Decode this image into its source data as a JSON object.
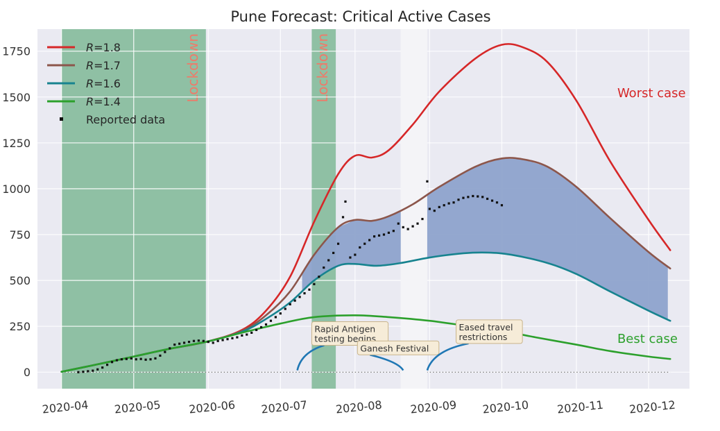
{
  "chart_data": {
    "type": "line",
    "title": "Pune Forecast: Critical Active Cases",
    "xlabel": "",
    "ylabel": "",
    "x_axis": {
      "type": "date",
      "ticks": [
        "2020-04",
        "2020-05",
        "2020-06",
        "2020-07",
        "2020-08",
        "2020-09",
        "2020-10",
        "2020-11",
        "2020-12"
      ],
      "range": [
        "2020-03-22",
        "2020-12-18"
      ]
    },
    "y_axis": {
      "ticks": [
        0,
        250,
        500,
        750,
        1000,
        1250,
        1500,
        1750
      ],
      "range": [
        -90,
        1870
      ]
    },
    "grid": true,
    "legend_position": "top-left",
    "colors": {
      "background": "#eaeaf2",
      "lockdown_band": "#8fc0a4",
      "reopen_band": "#f4f4f7",
      "shaded_region": "#8ea3cc",
      "annotation_box": "#f6ecd8",
      "annotation_arrow": "#1f77b4"
    },
    "series": [
      {
        "name": "R=1.8",
        "legend_prefix": "R",
        "legend_suffix": "=1.8",
        "color": "#d62728",
        "points": [
          [
            "2020-04-01",
            2
          ],
          [
            "2020-04-15",
            40
          ],
          [
            "2020-05-01",
            85
          ],
          [
            "2020-05-15",
            125
          ],
          [
            "2020-06-01",
            168
          ],
          [
            "2020-06-15",
            230
          ],
          [
            "2020-06-25",
            335
          ],
          [
            "2020-07-05",
            520
          ],
          [
            "2020-07-15",
            820
          ],
          [
            "2020-07-25",
            1080
          ],
          [
            "2020-08-01",
            1180
          ],
          [
            "2020-08-08",
            1170
          ],
          [
            "2020-08-15",
            1210
          ],
          [
            "2020-08-25",
            1350
          ],
          [
            "2020-09-05",
            1530
          ],
          [
            "2020-09-20",
            1710
          ],
          [
            "2020-10-01",
            1785
          ],
          [
            "2020-10-10",
            1770
          ],
          [
            "2020-10-20",
            1690
          ],
          [
            "2020-11-01",
            1480
          ],
          [
            "2020-11-15",
            1150
          ],
          [
            "2020-12-01",
            830
          ],
          [
            "2020-12-10",
            665
          ]
        ]
      },
      {
        "name": "R=1.7",
        "legend_prefix": "R",
        "legend_suffix": "=1.7",
        "color": "#8c564b",
        "points": [
          [
            "2020-04-01",
            2
          ],
          [
            "2020-04-15",
            40
          ],
          [
            "2020-05-01",
            85
          ],
          [
            "2020-05-15",
            125
          ],
          [
            "2020-06-01",
            168
          ],
          [
            "2020-06-15",
            225
          ],
          [
            "2020-06-25",
            310
          ],
          [
            "2020-07-05",
            440
          ],
          [
            "2020-07-15",
            640
          ],
          [
            "2020-07-25",
            790
          ],
          [
            "2020-08-01",
            830
          ],
          [
            "2020-08-08",
            825
          ],
          [
            "2020-08-15",
            850
          ],
          [
            "2020-08-25",
            915
          ],
          [
            "2020-09-05",
            1010
          ],
          [
            "2020-09-20",
            1120
          ],
          [
            "2020-10-01",
            1165
          ],
          [
            "2020-10-10",
            1160
          ],
          [
            "2020-10-20",
            1120
          ],
          [
            "2020-11-01",
            1010
          ],
          [
            "2020-11-15",
            840
          ],
          [
            "2020-12-01",
            655
          ],
          [
            "2020-12-10",
            565
          ]
        ]
      },
      {
        "name": "R=1.6",
        "legend_prefix": "R",
        "legend_suffix": "=1.6",
        "color": "#17838f",
        "points": [
          [
            "2020-04-01",
            2
          ],
          [
            "2020-04-15",
            40
          ],
          [
            "2020-05-01",
            85
          ],
          [
            "2020-05-15",
            125
          ],
          [
            "2020-06-01",
            168
          ],
          [
            "2020-06-15",
            220
          ],
          [
            "2020-06-25",
            290
          ],
          [
            "2020-07-05",
            380
          ],
          [
            "2020-07-15",
            500
          ],
          [
            "2020-07-25",
            580
          ],
          [
            "2020-08-01",
            590
          ],
          [
            "2020-08-10",
            580
          ],
          [
            "2020-08-20",
            595
          ],
          [
            "2020-09-01",
            625
          ],
          [
            "2020-09-15",
            648
          ],
          [
            "2020-09-25",
            652
          ],
          [
            "2020-10-05",
            640
          ],
          [
            "2020-10-20",
            595
          ],
          [
            "2020-11-01",
            535
          ],
          [
            "2020-11-15",
            440
          ],
          [
            "2020-12-01",
            335
          ],
          [
            "2020-12-10",
            280
          ]
        ]
      },
      {
        "name": "R=1.4",
        "legend_prefix": "R",
        "legend_suffix": "=1.4",
        "color": "#2ca02c",
        "points": [
          [
            "2020-04-01",
            2
          ],
          [
            "2020-04-15",
            40
          ],
          [
            "2020-05-01",
            85
          ],
          [
            "2020-05-15",
            125
          ],
          [
            "2020-06-01",
            168
          ],
          [
            "2020-06-15",
            215
          ],
          [
            "2020-07-01",
            265
          ],
          [
            "2020-07-15",
            300
          ],
          [
            "2020-08-01",
            310
          ],
          [
            "2020-08-15",
            300
          ],
          [
            "2020-09-01",
            280
          ],
          [
            "2020-09-15",
            255
          ],
          [
            "2020-10-01",
            225
          ],
          [
            "2020-10-15",
            190
          ],
          [
            "2020-11-01",
            150
          ],
          [
            "2020-11-15",
            115
          ],
          [
            "2020-12-01",
            85
          ],
          [
            "2020-12-10",
            72
          ]
        ]
      }
    ],
    "reported_data": {
      "name": "Reported data",
      "color": "#111111",
      "points": [
        [
          "2020-04-08",
          0
        ],
        [
          "2020-04-10",
          2
        ],
        [
          "2020-04-12",
          5
        ],
        [
          "2020-04-14",
          8
        ],
        [
          "2020-04-16",
          15
        ],
        [
          "2020-04-18",
          25
        ],
        [
          "2020-04-20",
          40
        ],
        [
          "2020-04-22",
          55
        ],
        [
          "2020-04-24",
          65
        ],
        [
          "2020-04-26",
          70
        ],
        [
          "2020-04-28",
          72
        ],
        [
          "2020-04-30",
          75
        ],
        [
          "2020-05-02",
          70
        ],
        [
          "2020-05-04",
          72
        ],
        [
          "2020-05-06",
          68
        ],
        [
          "2020-05-08",
          70
        ],
        [
          "2020-05-10",
          75
        ],
        [
          "2020-05-12",
          90
        ],
        [
          "2020-05-14",
          110
        ],
        [
          "2020-05-16",
          130
        ],
        [
          "2020-05-18",
          150
        ],
        [
          "2020-05-20",
          155
        ],
        [
          "2020-05-22",
          160
        ],
        [
          "2020-05-24",
          165
        ],
        [
          "2020-05-26",
          170
        ],
        [
          "2020-05-28",
          172
        ],
        [
          "2020-05-30",
          170
        ],
        [
          "2020-06-01",
          165
        ],
        [
          "2020-06-03",
          160
        ],
        [
          "2020-06-05",
          170
        ],
        [
          "2020-06-07",
          175
        ],
        [
          "2020-06-09",
          180
        ],
        [
          "2020-06-11",
          185
        ],
        [
          "2020-06-13",
          190
        ],
        [
          "2020-06-15",
          200
        ],
        [
          "2020-06-17",
          205
        ],
        [
          "2020-06-19",
          215
        ],
        [
          "2020-06-21",
          230
        ],
        [
          "2020-06-23",
          245
        ],
        [
          "2020-06-25",
          260
        ],
        [
          "2020-06-27",
          280
        ],
        [
          "2020-06-29",
          300
        ],
        [
          "2020-07-01",
          320
        ],
        [
          "2020-07-03",
          345
        ],
        [
          "2020-07-05",
          370
        ],
        [
          "2020-07-07",
          390
        ],
        [
          "2020-07-09",
          410
        ],
        [
          "2020-07-11",
          430
        ],
        [
          "2020-07-13",
          450
        ],
        [
          "2020-07-15",
          480
        ],
        [
          "2020-07-17",
          520
        ],
        [
          "2020-07-19",
          570
        ],
        [
          "2020-07-21",
          610
        ],
        [
          "2020-07-23",
          650
        ],
        [
          "2020-07-25",
          700
        ],
        [
          "2020-07-27",
          845
        ],
        [
          "2020-07-28",
          930
        ],
        [
          "2020-07-30",
          625
        ],
        [
          "2020-08-01",
          640
        ],
        [
          "2020-08-03",
          680
        ],
        [
          "2020-08-05",
          700
        ],
        [
          "2020-08-07",
          720
        ],
        [
          "2020-08-09",
          740
        ],
        [
          "2020-08-11",
          745
        ],
        [
          "2020-08-13",
          750
        ],
        [
          "2020-08-15",
          760
        ],
        [
          "2020-08-17",
          770
        ],
        [
          "2020-08-19",
          810
        ],
        [
          "2020-08-21",
          790
        ],
        [
          "2020-08-23",
          780
        ],
        [
          "2020-08-25",
          795
        ],
        [
          "2020-08-27",
          810
        ],
        [
          "2020-08-29",
          835
        ],
        [
          "2020-08-31",
          1040
        ],
        [
          "2020-09-01",
          890
        ],
        [
          "2020-09-03",
          880
        ],
        [
          "2020-09-05",
          900
        ],
        [
          "2020-09-07",
          910
        ],
        [
          "2020-09-09",
          920
        ],
        [
          "2020-09-11",
          925
        ],
        [
          "2020-09-13",
          940
        ],
        [
          "2020-09-15",
          950
        ],
        [
          "2020-09-17",
          955
        ],
        [
          "2020-09-19",
          960
        ],
        [
          "2020-09-21",
          958
        ],
        [
          "2020-09-23",
          955
        ],
        [
          "2020-09-25",
          945
        ],
        [
          "2020-09-27",
          935
        ],
        [
          "2020-09-29",
          925
        ],
        [
          "2020-10-01",
          910
        ]
      ]
    },
    "shaded_band": {
      "between": [
        "R=1.7",
        "R=1.6"
      ],
      "from": "2020-07-10",
      "to": "2020-12-10",
      "hidden_between": [
        "2020-08-20",
        "2020-08-31"
      ]
    },
    "lockdown_bands": [
      {
        "from": "2020-04-01",
        "to": "2020-05-31",
        "label": "Lockdown"
      },
      {
        "from": "2020-07-14",
        "to": "2020-07-24",
        "label": "Lockdown"
      }
    ],
    "reopen_band": {
      "from": "2020-08-20",
      "to": "2020-08-31"
    },
    "annotations": [
      {
        "text_lines": [
          "Rapid Antigen",
          "testing begins"
        ],
        "box_at": [
          "2020-07-14",
          275
        ],
        "arrow_to": [
          "2020-07-08",
          10
        ]
      },
      {
        "text_lines": [
          "Ganesh Festival"
        ],
        "box_at": [
          "2020-08-02",
          170
        ],
        "arrow_to": [
          "2020-08-21",
          10
        ]
      },
      {
        "text_lines": [
          "Eased travel",
          "restrictions"
        ],
        "box_at": [
          "2020-09-12",
          285
        ],
        "arrow_to": [
          "2020-08-31",
          10
        ]
      }
    ],
    "case_labels": [
      {
        "text": "Worst case",
        "at": [
          "2020-11-18",
          1500
        ],
        "color": "#d62728"
      },
      {
        "text": "Best case",
        "at": [
          "2020-11-18",
          160
        ],
        "color": "#2ca02c"
      }
    ],
    "zero_line": {
      "y": 0,
      "style": "dotted"
    }
  }
}
